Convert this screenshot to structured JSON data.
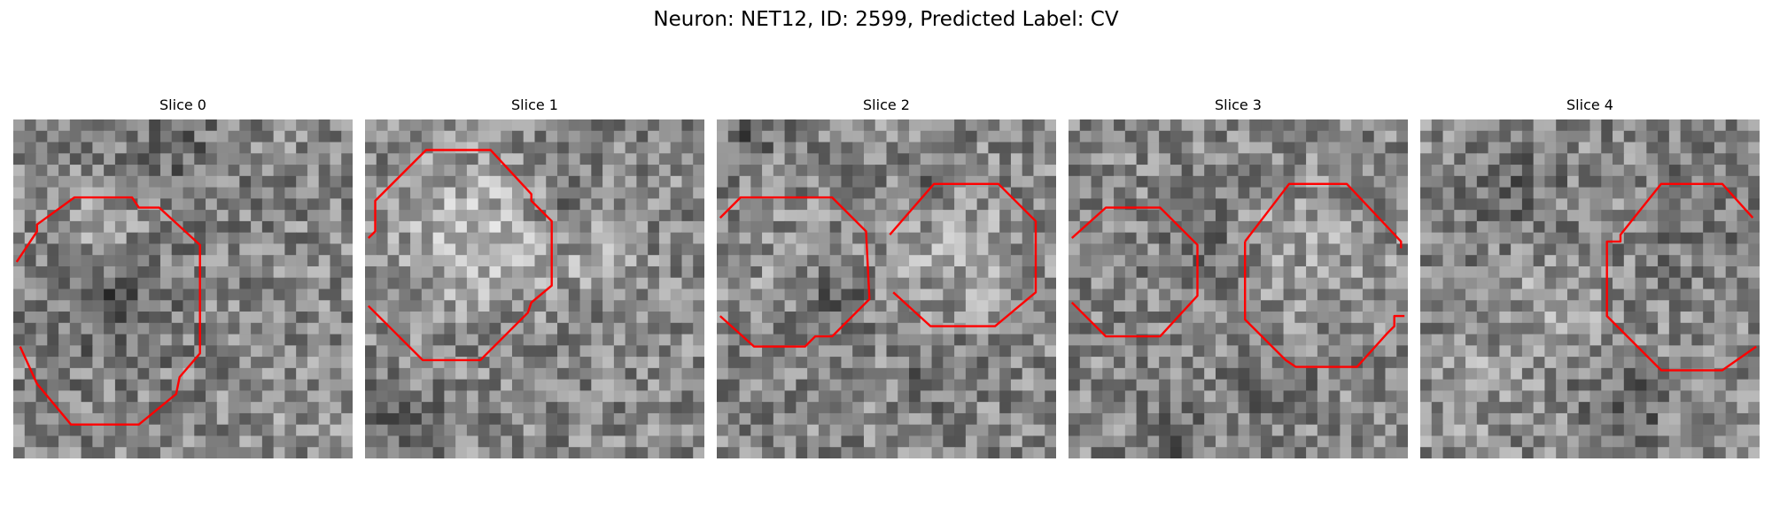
{
  "title": "Neuron: NET12, ID: 2599, Predicted Label: CV",
  "colors": {
    "contour": "#ff0000",
    "background": "#ffffff"
  },
  "panels": [
    {
      "title": "Slice 0",
      "image": "grayscale-microscopy-patch",
      "contours": [
        [
          [
            0.01,
            0.42
          ],
          [
            0.07,
            0.33
          ],
          [
            0.07,
            0.31
          ],
          [
            0.18,
            0.23
          ],
          [
            0.35,
            0.23
          ],
          [
            0.37,
            0.26
          ],
          [
            0.43,
            0.26
          ],
          [
            0.55,
            0.37
          ],
          [
            0.55,
            0.69
          ],
          [
            0.49,
            0.76
          ],
          [
            0.48,
            0.81
          ],
          [
            0.37,
            0.9
          ],
          [
            0.17,
            0.9
          ],
          [
            0.07,
            0.78
          ],
          [
            0.02,
            0.67
          ]
        ]
      ]
    },
    {
      "title": "Slice 1",
      "image": "grayscale-microscopy-patch",
      "contours": [
        [
          [
            0.01,
            0.35
          ],
          [
            0.03,
            0.33
          ],
          [
            0.03,
            0.24
          ],
          [
            0.18,
            0.09
          ],
          [
            0.37,
            0.09
          ],
          [
            0.49,
            0.22
          ],
          [
            0.49,
            0.24
          ],
          [
            0.55,
            0.3
          ],
          [
            0.55,
            0.49
          ],
          [
            0.49,
            0.54
          ],
          [
            0.48,
            0.57
          ],
          [
            0.34,
            0.71
          ],
          [
            0.17,
            0.71
          ],
          [
            0.01,
            0.55
          ]
        ]
      ]
    },
    {
      "title": "Slice 2",
      "image": "grayscale-microscopy-patch",
      "contours": [
        [
          [
            0.01,
            0.29
          ],
          [
            0.07,
            0.23
          ],
          [
            0.34,
            0.23
          ],
          [
            0.44,
            0.33
          ],
          [
            0.45,
            0.53
          ],
          [
            0.34,
            0.64
          ],
          [
            0.29,
            0.64
          ],
          [
            0.26,
            0.67
          ],
          [
            0.11,
            0.67
          ],
          [
            0.01,
            0.58
          ]
        ],
        [
          [
            0.51,
            0.34
          ],
          [
            0.64,
            0.19
          ],
          [
            0.83,
            0.19
          ],
          [
            0.94,
            0.3
          ],
          [
            0.94,
            0.51
          ],
          [
            0.82,
            0.61
          ],
          [
            0.63,
            0.61
          ],
          [
            0.52,
            0.51
          ]
        ]
      ]
    },
    {
      "title": "Slice 3",
      "image": "grayscale-microscopy-patch",
      "contours": [
        [
          [
            0.01,
            0.35
          ],
          [
            0.11,
            0.26
          ],
          [
            0.27,
            0.26
          ],
          [
            0.38,
            0.37
          ],
          [
            0.38,
            0.52
          ],
          [
            0.27,
            0.64
          ],
          [
            0.11,
            0.64
          ],
          [
            0.01,
            0.54
          ]
        ],
        [
          [
            0.52,
            0.36
          ],
          [
            0.65,
            0.19
          ],
          [
            0.82,
            0.19
          ],
          [
            0.98,
            0.36
          ],
          [
            0.98,
            0.38
          ]
        ],
        [
          [
            0.52,
            0.36
          ],
          [
            0.52,
            0.59
          ],
          [
            0.64,
            0.71
          ],
          [
            0.67,
            0.73
          ],
          [
            0.77,
            0.73
          ],
          [
            0.85,
            0.73
          ],
          [
            0.94,
            0.63
          ],
          [
            0.96,
            0.61
          ],
          [
            0.96,
            0.58
          ],
          [
            0.99,
            0.58
          ]
        ]
      ]
    },
    {
      "title": "Slice 4",
      "image": "grayscale-microscopy-patch",
      "contours": [
        [
          [
            0.98,
            0.29
          ],
          [
            0.89,
            0.19
          ],
          [
            0.71,
            0.19
          ],
          [
            0.59,
            0.34
          ],
          [
            0.59,
            0.36
          ],
          [
            0.55,
            0.36
          ],
          [
            0.55,
            0.58
          ],
          [
            0.71,
            0.74
          ],
          [
            0.89,
            0.74
          ],
          [
            0.99,
            0.67
          ]
        ]
      ]
    }
  ]
}
